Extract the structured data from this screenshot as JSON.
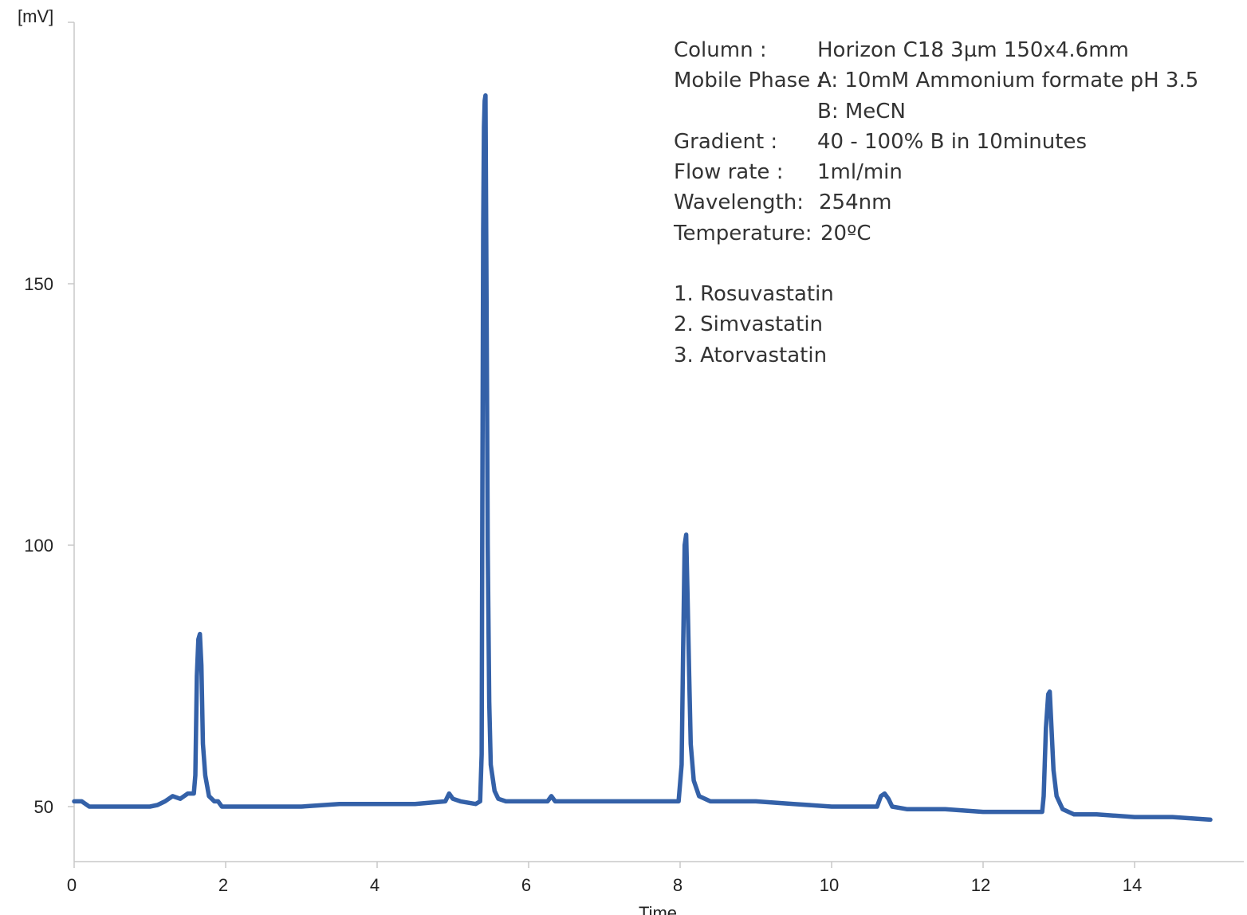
{
  "chart_data": {
    "type": "line",
    "title": "",
    "xlabel": "Time",
    "ylabel": "[mV]",
    "xlim": [
      0,
      15.5
    ],
    "ylim": [
      40,
      200
    ],
    "x_ticks": [
      0,
      2,
      4,
      6,
      8,
      10,
      12,
      14
    ],
    "y_ticks": [
      50,
      100,
      150
    ],
    "grid": false,
    "series_color": "#3461a8",
    "series": [
      {
        "name": "",
        "points": [
          [
            0.0,
            51.0
          ],
          [
            0.1,
            51.0
          ],
          [
            0.2,
            50.0
          ],
          [
            0.5,
            50.0
          ],
          [
            0.8,
            50.0
          ],
          [
            1.0,
            50.0
          ],
          [
            1.1,
            50.3
          ],
          [
            1.2,
            51.0
          ],
          [
            1.3,
            52.0
          ],
          [
            1.4,
            51.5
          ],
          [
            1.5,
            52.5
          ],
          [
            1.58,
            52.5
          ],
          [
            1.6,
            56.0
          ],
          [
            1.62,
            75.0
          ],
          [
            1.64,
            82.0
          ],
          [
            1.66,
            83.0
          ],
          [
            1.68,
            77.0
          ],
          [
            1.7,
            62.0
          ],
          [
            1.73,
            56.0
          ],
          [
            1.78,
            52.0
          ],
          [
            1.85,
            51.0
          ],
          [
            1.9,
            51.0
          ],
          [
            1.95,
            50.0
          ],
          [
            2.0,
            50.0
          ],
          [
            2.5,
            50.0
          ],
          [
            3.0,
            50.0
          ],
          [
            3.5,
            50.5
          ],
          [
            4.0,
            50.5
          ],
          [
            4.5,
            50.5
          ],
          [
            4.9,
            51.0
          ],
          [
            4.95,
            52.5
          ],
          [
            5.0,
            51.5
          ],
          [
            5.1,
            51.0
          ],
          [
            5.3,
            50.5
          ],
          [
            5.36,
            51.0
          ],
          [
            5.38,
            60.0
          ],
          [
            5.39,
            110.0
          ],
          [
            5.4,
            160.0
          ],
          [
            5.41,
            180.0
          ],
          [
            5.42,
            185.0
          ],
          [
            5.43,
            186.0
          ],
          [
            5.44,
            160.0
          ],
          [
            5.45,
            130.0
          ],
          [
            5.46,
            100.0
          ],
          [
            5.48,
            70.0
          ],
          [
            5.5,
            58.0
          ],
          [
            5.55,
            53.0
          ],
          [
            5.6,
            51.5
          ],
          [
            5.7,
            51.0
          ],
          [
            6.0,
            51.0
          ],
          [
            6.25,
            51.0
          ],
          [
            6.3,
            52.0
          ],
          [
            6.35,
            51.0
          ],
          [
            6.5,
            51.0
          ],
          [
            7.0,
            51.0
          ],
          [
            7.5,
            51.0
          ],
          [
            7.98,
            51.0
          ],
          [
            8.02,
            58.0
          ],
          [
            8.04,
            80.0
          ],
          [
            8.06,
            100.0
          ],
          [
            8.08,
            102.0
          ],
          [
            8.1,
            89.0
          ],
          [
            8.12,
            75.0
          ],
          [
            8.14,
            62.0
          ],
          [
            8.18,
            55.0
          ],
          [
            8.25,
            52.0
          ],
          [
            8.4,
            51.0
          ],
          [
            9.0,
            51.0
          ],
          [
            9.5,
            50.5
          ],
          [
            10.0,
            50.0
          ],
          [
            10.5,
            50.0
          ],
          [
            10.6,
            50.0
          ],
          [
            10.65,
            52.0
          ],
          [
            10.7,
            52.5
          ],
          [
            10.75,
            51.5
          ],
          [
            10.8,
            50.0
          ],
          [
            11.0,
            49.5
          ],
          [
            11.5,
            49.5
          ],
          [
            12.0,
            49.0
          ],
          [
            12.5,
            49.0
          ],
          [
            12.78,
            49.0
          ],
          [
            12.8,
            52.0
          ],
          [
            12.83,
            65.0
          ],
          [
            12.86,
            71.5
          ],
          [
            12.88,
            72.0
          ],
          [
            12.9,
            66.0
          ],
          [
            12.93,
            57.0
          ],
          [
            12.97,
            52.0
          ],
          [
            13.05,
            49.5
          ],
          [
            13.2,
            48.5
          ],
          [
            13.5,
            48.5
          ],
          [
            14.0,
            48.0
          ],
          [
            14.5,
            48.0
          ],
          [
            15.0,
            47.5
          ]
        ]
      }
    ]
  },
  "annotation": {
    "lines": [
      {
        "label": "Column :",
        "value": "Horizon C18 3µm 150x4.6mm"
      },
      {
        "label": "Mobile Phase :",
        "value": "A: 10mM Ammonium formate pH 3.5"
      },
      {
        "label": "",
        "value": "B:  MeCN"
      },
      {
        "label": "Gradient :",
        "value": "40 - 100% B in 10minutes"
      },
      {
        "label": "Flow rate :",
        "value": "1ml/min"
      },
      {
        "label": "Wavelength:",
        "value": "254nm"
      },
      {
        "label": "Temperature:",
        "value": "20ºC"
      }
    ],
    "peaks": [
      "1. Rosuvastatin",
      "2. Simvastatin",
      "3. Atorvastatin"
    ]
  }
}
